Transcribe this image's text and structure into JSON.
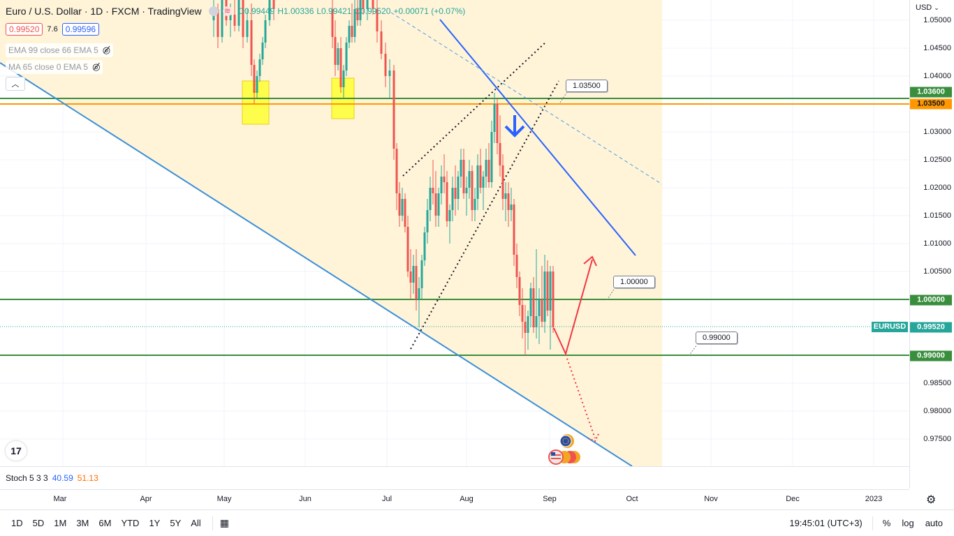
{
  "header": {
    "symbol_title": "Euro / U.S. Dollar · 1D · FXCM · TradingView",
    "open": "O0.99449",
    "high": "H1.00336",
    "low": "L0.99421",
    "close": "C0.99520",
    "change": "+0.00071 (+0.07%)",
    "sell_price": "0.99520",
    "spread": "7.6",
    "buy_price": "0.99596",
    "indicator_1": "EMA 99 close 66 EMA 5",
    "indicator_2": "MA 65 close 0 EMA 5"
  },
  "price_scale": {
    "currency": "USD",
    "labels": [
      "1.05000",
      "1.04500",
      "1.04000",
      "1.03000",
      "1.02500",
      "1.02000",
      "1.01500",
      "1.01000",
      "1.00500",
      "0.98500",
      "0.98000",
      "0.97500"
    ],
    "tags": {
      "green_1_036": "1.03600",
      "orange_1_035": "1.03500",
      "green_1_000": "1.00000",
      "symbol_tag": "EURUSD",
      "current": "0.99520",
      "green_0_990": "0.99000"
    }
  },
  "callouts": {
    "c1": "1.03500",
    "c2": "1.00000",
    "c3": "0.99000"
  },
  "time_scale": {
    "labels": [
      "Mar",
      "Apr",
      "May",
      "Jun",
      "Jul",
      "Aug",
      "Sep",
      "Oct",
      "Nov",
      "Dec",
      "2023"
    ]
  },
  "stoch": {
    "label": "Stoch 5 3 3",
    "k": "40.59",
    "d": "51.13"
  },
  "toolbar": {
    "ranges": [
      "1D",
      "5D",
      "1M",
      "3M",
      "6M",
      "YTD",
      "1Y",
      "5Y",
      "All"
    ],
    "time": "19:45:01 (UTC+3)",
    "percent": "%",
    "log": "log",
    "auto": "auto"
  },
  "colors": {
    "up": "#26a69a",
    "down": "#ef5350",
    "green_line": "#388e3c",
    "orange_line": "#ff9800",
    "blue_line": "#2962ff",
    "trend_blue": "#3a8fd9",
    "shade": "#fff3d6",
    "highlight": "#ffff00"
  },
  "icons": {
    "logo": "tradingview-logo-icon",
    "settings": "gear-icon",
    "collapse": "chevron-up-icon",
    "calendar": "calendar-range-icon",
    "hidden_eye": "eye-off-icon"
  }
}
